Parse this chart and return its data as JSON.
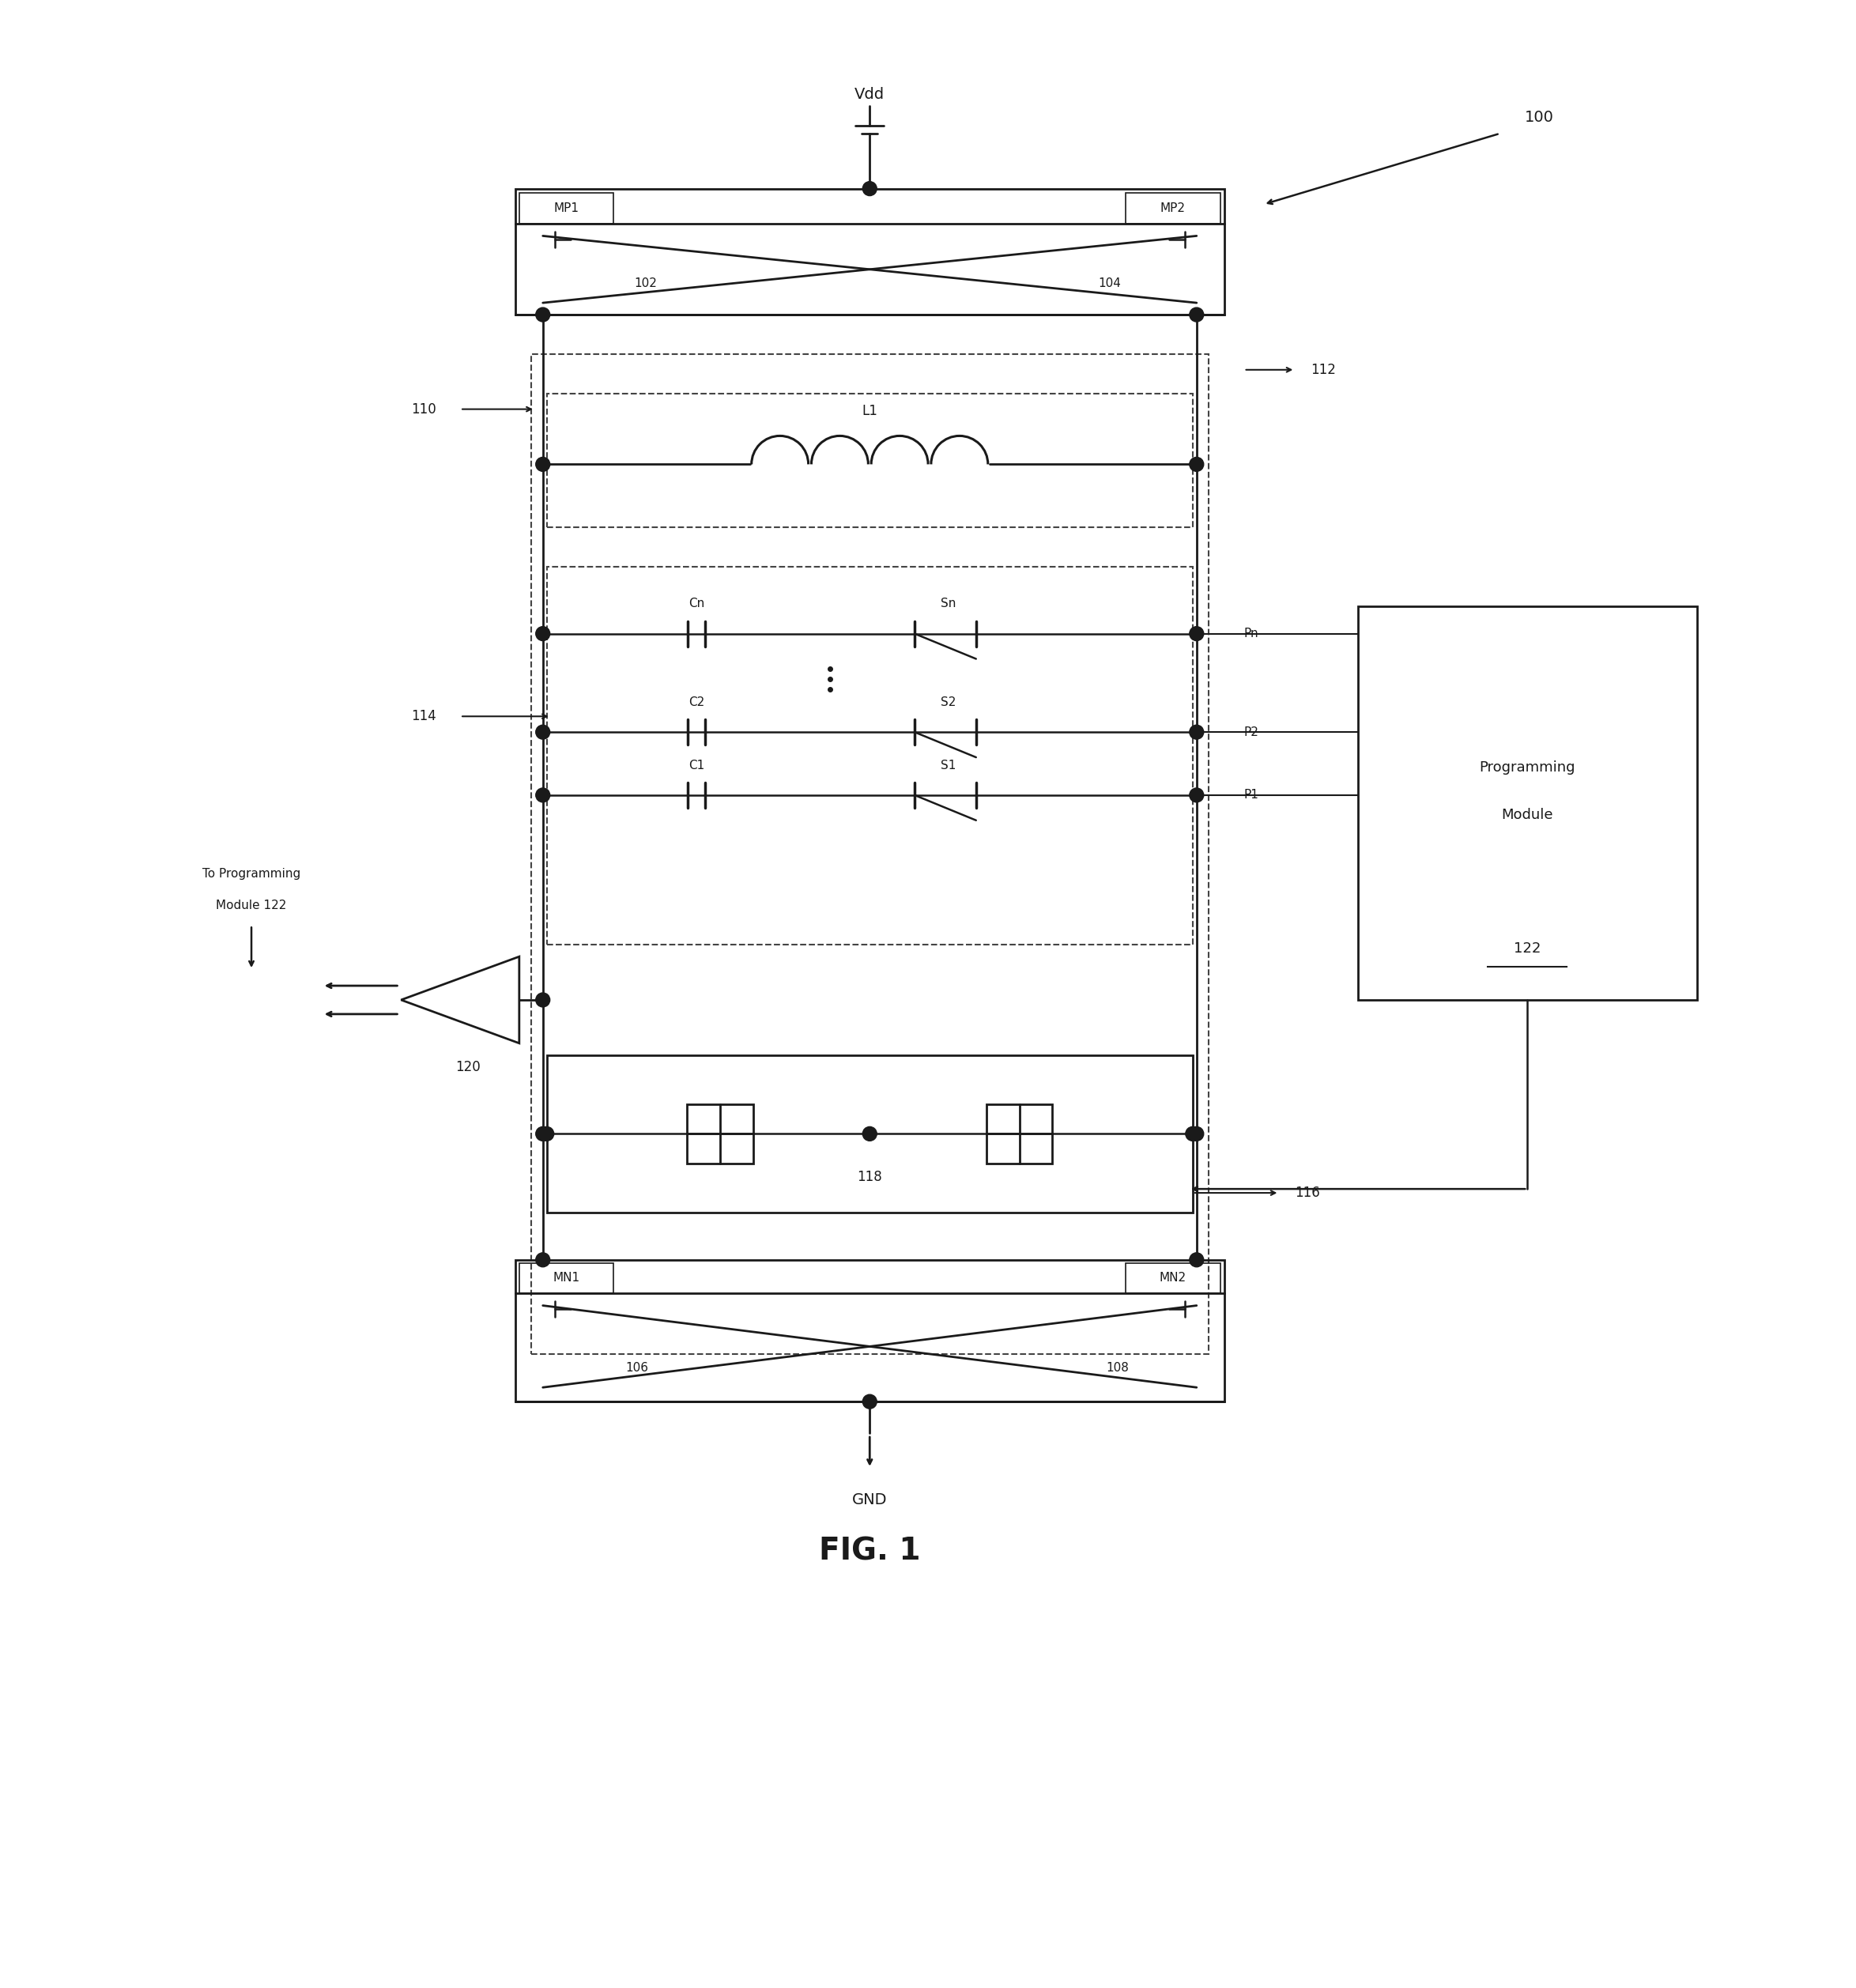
{
  "fig_label": "FIG. 1",
  "ref_100": "100",
  "vdd_label": "Vdd",
  "gnd_label": "GND",
  "mp1_label": "MP1",
  "mp2_label": "MP2",
  "mn1_label": "MN1",
  "mn2_label": "MN2",
  "l1_label": "L1",
  "ref_102": "102",
  "ref_104": "104",
  "ref_106": "106",
  "ref_108": "108",
  "ref_110": "110",
  "ref_112": "112",
  "ref_114": "114",
  "ref_116": "116",
  "ref_118": "118",
  "ref_120": "120",
  "ref_122": "122",
  "cn_label": "Cn",
  "sn_label": "Sn",
  "c2_label": "C2",
  "s2_label": "S2",
  "c1_label": "C1",
  "s1_label": "S1",
  "pn_label": "Pn",
  "p2_label": "P2",
  "p1_label": "P1",
  "prog_line1": "Programming",
  "prog_line2": "Module",
  "to_prog_line1": "To Programming",
  "to_prog_line2": "Module 122",
  "bg_color": "#ffffff",
  "line_color": "#1a1a1a",
  "dashed_color": "#444444"
}
